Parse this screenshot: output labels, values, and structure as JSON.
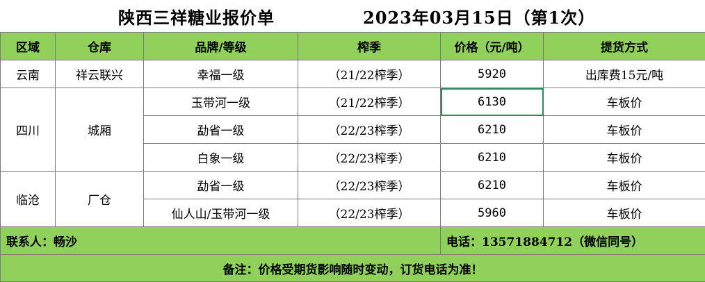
{
  "title": {
    "main": "陕西三祥糖业报价单",
    "date": "2023年03月15日（第1次）"
  },
  "headers": {
    "region": "区域",
    "warehouse": "仓库",
    "brand": "品牌/等级",
    "season": "榨季",
    "price": "价格（元/吨）",
    "delivery": "提货方式"
  },
  "groups": [
    {
      "region": "云南",
      "warehouse": "祥云联兴",
      "rows": [
        {
          "brand": "幸福一级",
          "season": "（21/22榨季）",
          "price": "5920",
          "delivery": "出库费15元/吨"
        }
      ]
    },
    {
      "region": "四川",
      "warehouse": "城厢",
      "rows": [
        {
          "brand": "玉带河一级",
          "season": "（21/22榨季）",
          "price": "6130",
          "delivery": "车板价"
        },
        {
          "brand": "勐省一级",
          "season": "（22/23榨季）",
          "price": "6210",
          "delivery": "车板价"
        },
        {
          "brand": "白象一级",
          "season": "（22/23榨季）",
          "price": "6210",
          "delivery": "车板价"
        }
      ]
    },
    {
      "region": "临沧",
      "warehouse": "厂仓",
      "rows": [
        {
          "brand": "勐省一级",
          "season": "（22/23榨季）",
          "price": "6210",
          "delivery": "车板价"
        },
        {
          "brand": "仙人山/玉带河一级",
          "season": "（22/23榨季）",
          "price": "5960",
          "delivery": "车板价"
        }
      ]
    }
  ],
  "footer": {
    "contact": "联系人：畅沙",
    "phone": "电话：13571884712（微信同号）",
    "note": "备注：价格受期货影响随时变动，订货电话为准！"
  },
  "colors": {
    "header_bg": "#8fd15a",
    "selected_cell_border": "#2e8b57"
  }
}
